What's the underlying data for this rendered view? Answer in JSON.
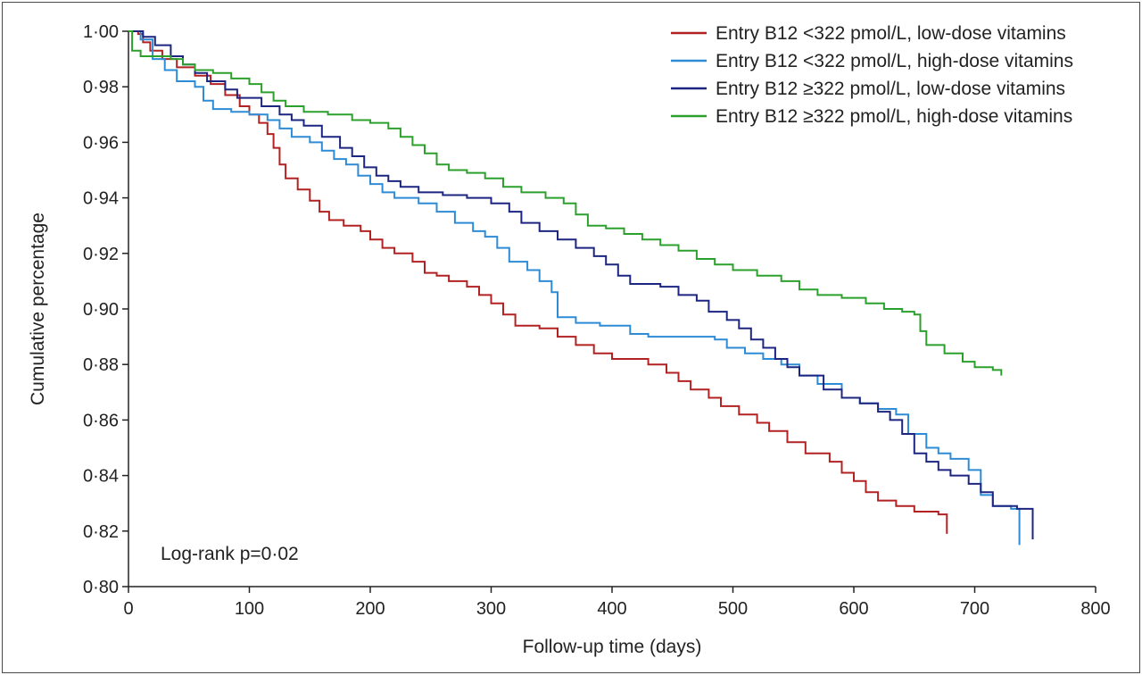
{
  "chart_data": {
    "type": "line",
    "xlabel": "Follow-up time (days)",
    "ylabel": "Cumulative percentage",
    "xlim": [
      0,
      800
    ],
    "ylim": [
      0.8,
      1.0
    ],
    "x_ticks": [
      0,
      100,
      200,
      300,
      400,
      500,
      600,
      700,
      800
    ],
    "x_tick_labels": [
      "0",
      "100",
      "200",
      "300",
      "400",
      "500",
      "600",
      "700",
      "800"
    ],
    "y_ticks": [
      0.8,
      0.82,
      0.84,
      0.86,
      0.88,
      0.9,
      0.92,
      0.94,
      0.96,
      0.98,
      1.0
    ],
    "y_tick_labels": [
      "0·80",
      "0·82",
      "0·84",
      "0·86",
      "0·88",
      "0·90",
      "0·92",
      "0·94",
      "0·96",
      "0·98",
      "1·00"
    ],
    "grid": false,
    "legend_position": "top-right",
    "annotation": "Log-rank p=0·02",
    "series": [
      {
        "name": "Entry B12 <322 pmol/L, low-dose vitamins",
        "color": "#b22222",
        "points": [
          [
            0,
            1.0
          ],
          [
            8,
            0.999
          ],
          [
            12,
            0.996
          ],
          [
            18,
            0.993
          ],
          [
            28,
            0.99
          ],
          [
            40,
            0.987
          ],
          [
            55,
            0.984
          ],
          [
            68,
            0.981
          ],
          [
            80,
            0.977
          ],
          [
            92,
            0.973
          ],
          [
            100,
            0.97
          ],
          [
            108,
            0.967
          ],
          [
            115,
            0.963
          ],
          [
            120,
            0.958
          ],
          [
            125,
            0.952
          ],
          [
            130,
            0.947
          ],
          [
            140,
            0.943
          ],
          [
            150,
            0.939
          ],
          [
            158,
            0.935
          ],
          [
            166,
            0.932
          ],
          [
            178,
            0.93
          ],
          [
            192,
            0.928
          ],
          [
            200,
            0.925
          ],
          [
            210,
            0.922
          ],
          [
            220,
            0.92
          ],
          [
            235,
            0.917
          ],
          [
            245,
            0.913
          ],
          [
            255,
            0.912
          ],
          [
            265,
            0.91
          ],
          [
            280,
            0.908
          ],
          [
            290,
            0.905
          ],
          [
            300,
            0.902
          ],
          [
            310,
            0.898
          ],
          [
            320,
            0.894
          ],
          [
            340,
            0.893
          ],
          [
            355,
            0.89
          ],
          [
            370,
            0.887
          ],
          [
            385,
            0.884
          ],
          [
            400,
            0.882
          ],
          [
            430,
            0.88
          ],
          [
            445,
            0.877
          ],
          [
            455,
            0.874
          ],
          [
            465,
            0.871
          ],
          [
            480,
            0.868
          ],
          [
            490,
            0.865
          ],
          [
            505,
            0.862
          ],
          [
            520,
            0.859
          ],
          [
            530,
            0.856
          ],
          [
            545,
            0.852
          ],
          [
            560,
            0.848
          ],
          [
            580,
            0.845
          ],
          [
            590,
            0.841
          ],
          [
            600,
            0.838
          ],
          [
            610,
            0.834
          ],
          [
            620,
            0.831
          ],
          [
            635,
            0.829
          ],
          [
            650,
            0.827
          ],
          [
            670,
            0.826
          ],
          [
            677,
            0.819
          ]
        ]
      },
      {
        "name": "Entry B12 <322 pmol/L, high-dose vitamins",
        "color": "#2e8bd6",
        "points": [
          [
            0,
            1.0
          ],
          [
            10,
            0.997
          ],
          [
            20,
            0.99
          ],
          [
            30,
            0.986
          ],
          [
            40,
            0.982
          ],
          [
            55,
            0.98
          ],
          [
            62,
            0.975
          ],
          [
            70,
            0.972
          ],
          [
            85,
            0.971
          ],
          [
            100,
            0.97
          ],
          [
            115,
            0.968
          ],
          [
            125,
            0.965
          ],
          [
            135,
            0.962
          ],
          [
            150,
            0.96
          ],
          [
            160,
            0.957
          ],
          [
            170,
            0.954
          ],
          [
            180,
            0.952
          ],
          [
            190,
            0.948
          ],
          [
            200,
            0.945
          ],
          [
            210,
            0.942
          ],
          [
            220,
            0.94
          ],
          [
            240,
            0.938
          ],
          [
            255,
            0.935
          ],
          [
            270,
            0.931
          ],
          [
            285,
            0.928
          ],
          [
            295,
            0.926
          ],
          [
            305,
            0.922
          ],
          [
            315,
            0.917
          ],
          [
            330,
            0.914
          ],
          [
            340,
            0.91
          ],
          [
            350,
            0.906
          ],
          [
            355,
            0.897
          ],
          [
            370,
            0.895
          ],
          [
            390,
            0.894
          ],
          [
            415,
            0.891
          ],
          [
            430,
            0.89
          ],
          [
            460,
            0.89
          ],
          [
            485,
            0.889
          ],
          [
            495,
            0.886
          ],
          [
            510,
            0.884
          ],
          [
            525,
            0.882
          ],
          [
            540,
            0.88
          ],
          [
            555,
            0.876
          ],
          [
            570,
            0.873
          ],
          [
            590,
            0.868
          ],
          [
            605,
            0.866
          ],
          [
            620,
            0.864
          ],
          [
            635,
            0.862
          ],
          [
            645,
            0.855
          ],
          [
            660,
            0.85
          ],
          [
            670,
            0.848
          ],
          [
            680,
            0.846
          ],
          [
            695,
            0.842
          ],
          [
            705,
            0.833
          ],
          [
            715,
            0.829
          ],
          [
            730,
            0.828
          ],
          [
            737,
            0.815
          ]
        ]
      },
      {
        "name": "Entry B12 ≥322 pmol/L, low-dose vitamins",
        "color": "#1c2580",
        "points": [
          [
            0,
            1.0
          ],
          [
            12,
            0.998
          ],
          [
            22,
            0.995
          ],
          [
            35,
            0.991
          ],
          [
            45,
            0.988
          ],
          [
            55,
            0.985
          ],
          [
            65,
            0.982
          ],
          [
            80,
            0.979
          ],
          [
            90,
            0.976
          ],
          [
            110,
            0.973
          ],
          [
            125,
            0.97
          ],
          [
            135,
            0.968
          ],
          [
            145,
            0.966
          ],
          [
            160,
            0.962
          ],
          [
            175,
            0.958
          ],
          [
            185,
            0.955
          ],
          [
            195,
            0.951
          ],
          [
            205,
            0.948
          ],
          [
            215,
            0.946
          ],
          [
            225,
            0.944
          ],
          [
            240,
            0.942
          ],
          [
            260,
            0.941
          ],
          [
            280,
            0.94
          ],
          [
            300,
            0.938
          ],
          [
            315,
            0.935
          ],
          [
            325,
            0.931
          ],
          [
            340,
            0.928
          ],
          [
            355,
            0.925
          ],
          [
            370,
            0.922
          ],
          [
            385,
            0.919
          ],
          [
            395,
            0.916
          ],
          [
            405,
            0.912
          ],
          [
            415,
            0.909
          ],
          [
            440,
            0.908
          ],
          [
            455,
            0.905
          ],
          [
            470,
            0.903
          ],
          [
            480,
            0.899
          ],
          [
            495,
            0.896
          ],
          [
            505,
            0.893
          ],
          [
            515,
            0.889
          ],
          [
            525,
            0.886
          ],
          [
            535,
            0.882
          ],
          [
            545,
            0.879
          ],
          [
            555,
            0.876
          ],
          [
            575,
            0.871
          ],
          [
            590,
            0.868
          ],
          [
            605,
            0.866
          ],
          [
            620,
            0.863
          ],
          [
            630,
            0.86
          ],
          [
            640,
            0.855
          ],
          [
            650,
            0.848
          ],
          [
            660,
            0.845
          ],
          [
            670,
            0.842
          ],
          [
            680,
            0.84
          ],
          [
            695,
            0.837
          ],
          [
            705,
            0.834
          ],
          [
            715,
            0.829
          ],
          [
            735,
            0.828
          ],
          [
            748,
            0.817
          ]
        ]
      },
      {
        "name": "Entry B12 ≥322 pmol/L, high-dose vitamins",
        "color": "#2ca02c",
        "points": [
          [
            0,
            1.0
          ],
          [
            3,
            0.993
          ],
          [
            10,
            0.991
          ],
          [
            25,
            0.991
          ],
          [
            35,
            0.99
          ],
          [
            45,
            0.988
          ],
          [
            55,
            0.986
          ],
          [
            70,
            0.985
          ],
          [
            85,
            0.983
          ],
          [
            100,
            0.981
          ],
          [
            110,
            0.978
          ],
          [
            120,
            0.975
          ],
          [
            130,
            0.973
          ],
          [
            145,
            0.971
          ],
          [
            165,
            0.97
          ],
          [
            185,
            0.968
          ],
          [
            200,
            0.967
          ],
          [
            215,
            0.965
          ],
          [
            225,
            0.962
          ],
          [
            235,
            0.959
          ],
          [
            245,
            0.956
          ],
          [
            255,
            0.952
          ],
          [
            265,
            0.95
          ],
          [
            280,
            0.949
          ],
          [
            295,
            0.947
          ],
          [
            310,
            0.944
          ],
          [
            325,
            0.942
          ],
          [
            345,
            0.94
          ],
          [
            360,
            0.938
          ],
          [
            370,
            0.934
          ],
          [
            380,
            0.93
          ],
          [
            395,
            0.929
          ],
          [
            410,
            0.927
          ],
          [
            425,
            0.925
          ],
          [
            440,
            0.923
          ],
          [
            455,
            0.921
          ],
          [
            470,
            0.918
          ],
          [
            485,
            0.916
          ],
          [
            500,
            0.914
          ],
          [
            520,
            0.912
          ],
          [
            540,
            0.91
          ],
          [
            555,
            0.907
          ],
          [
            570,
            0.905
          ],
          [
            590,
            0.904
          ],
          [
            610,
            0.902
          ],
          [
            625,
            0.9
          ],
          [
            640,
            0.899
          ],
          [
            650,
            0.898
          ],
          [
            655,
            0.892
          ],
          [
            660,
            0.887
          ],
          [
            675,
            0.884
          ],
          [
            690,
            0.881
          ],
          [
            700,
            0.879
          ],
          [
            715,
            0.878
          ],
          [
            722,
            0.876
          ]
        ]
      }
    ]
  }
}
